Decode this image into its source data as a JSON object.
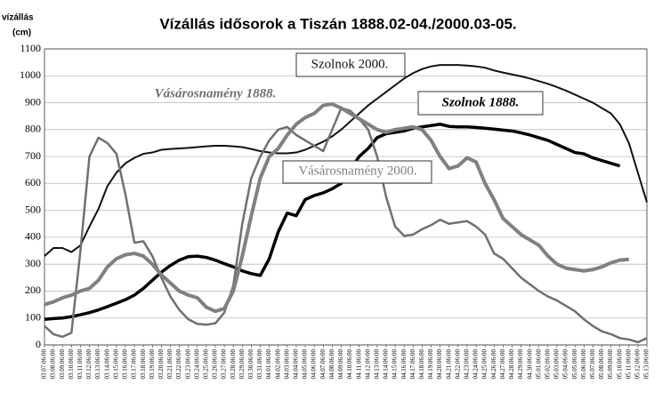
{
  "chart_data": {
    "type": "line",
    "title": "Vízállás idősorok a Tiszán  1888.02-04./2000.03-05.",
    "ylabel": "vízállás",
    "yunit": "(cm)",
    "ylim": [
      0,
      1100
    ],
    "yticks": [
      0,
      100,
      200,
      300,
      400,
      500,
      600,
      700,
      800,
      900,
      1000,
      1100
    ],
    "grid": true,
    "categories": [
      "03.07.06:00",
      "03.08.06:00",
      "03.09.06:00",
      "03.10.06:00",
      "03.11.06:00",
      "03.12.06:00",
      "03.13.06:00",
      "03.14.06:00",
      "03.15.06:00",
      "03.16.06:00",
      "03.17.06:00",
      "03.18.06:00",
      "03.19.06:00",
      "03.20.06:00",
      "03.21.06:00",
      "03.22.06:00",
      "03.23.06:00",
      "03.24.06:00",
      "03.25.06:00",
      "03.26.06:00",
      "03.27.06:00",
      "03.28.06:00",
      "03.29.06:00",
      "03.30.06:00",
      "03.31.06:00",
      "04.01.06:00",
      "04.02.06:00",
      "04.03.06:00",
      "04.04.06:00",
      "04.05.06:00",
      "04.06.06:00",
      "04.07.06:00",
      "04.08.06:00",
      "04.09.06:00",
      "04.10.06:00",
      "04.11.06:00",
      "04.12.06:00",
      "04.13.06:00",
      "04.14.06:00",
      "04.15.06:00",
      "04.16.06:00",
      "04.17.06:00",
      "04.18.06:00",
      "04.19.06:00",
      "04.20.06:00",
      "04.21.06:00",
      "04.22.06:00",
      "04.23.06:00",
      "04.24.06:00",
      "04.25.06:00",
      "04.26.06:00",
      "04.27.06:00",
      "04.28.06:00",
      "04.29.06:00",
      "04.30.06:00",
      "05.01.06:00",
      "05.02.06:00",
      "05.03.06:00",
      "05.04.06:00",
      "05.05.06:00",
      "05.06.06:00",
      "05.07.06:00",
      "05.08.06:00",
      "05.09.06:00",
      "05.10.06:00",
      "05.11.06:00",
      "05.12.06:00",
      "05.13.06:00"
    ],
    "series": [
      {
        "name": "Szolnok 2000.",
        "color": "#111111",
        "values": [
          330,
          360,
          360,
          345,
          370,
          440,
          505,
          590,
          640,
          675,
          695,
          710,
          715,
          725,
          728,
          730,
          732,
          735,
          738,
          740,
          740,
          738,
          735,
          728,
          720,
          715,
          712,
          712,
          715,
          725,
          740,
          755,
          775,
          800,
          830,
          860,
          890,
          915,
          940,
          965,
          990,
          1010,
          1025,
          1035,
          1040,
          1040,
          1040,
          1038,
          1035,
          1030,
          1020,
          1012,
          1005,
          998,
          990,
          980,
          970,
          958,
          945,
          930,
          915,
          900,
          880,
          860,
          820,
          750,
          640,
          530
        ]
      },
      {
        "name": "Szolnok 1888.",
        "color": "#000000",
        "values": [
          95,
          98,
          100,
          105,
          112,
          120,
          130,
          142,
          155,
          168,
          185,
          210,
          240,
          270,
          295,
          315,
          328,
          330,
          325,
          315,
          302,
          290,
          275,
          265,
          258,
          320,
          420,
          490,
          480,
          540,
          555,
          565,
          580,
          600,
          650,
          700,
          730,
          770,
          785,
          790,
          795,
          805,
          810,
          815,
          820,
          812,
          810,
          810,
          808,
          805,
          802,
          798,
          795,
          788,
          780,
          770,
          760,
          745,
          730,
          715,
          710,
          695,
          685,
          675,
          665,
          null,
          null,
          null
        ]
      },
      {
        "name": "Vásárosnamény 1888.",
        "color": "#707070",
        "values": [
          70,
          40,
          30,
          45,
          350,
          700,
          770,
          750,
          710,
          560,
          380,
          385,
          330,
          250,
          180,
          130,
          95,
          78,
          75,
          80,
          120,
          220,
          450,
          620,
          700,
          760,
          800,
          810,
          780,
          760,
          740,
          720,
          800,
          880,
          870,
          840,
          800,
          700,
          550,
          440,
          405,
          410,
          430,
          445,
          465,
          450,
          455,
          460,
          440,
          410,
          340,
          320,
          285,
          250,
          225,
          200,
          180,
          165,
          145,
          125,
          95,
          70,
          50,
          40,
          25,
          20,
          10,
          25
        ]
      },
      {
        "name": "Vásárosnamény 2000.",
        "color": "#808080",
        "values": [
          150,
          160,
          175,
          185,
          200,
          210,
          240,
          290,
          320,
          335,
          340,
          330,
          300,
          260,
          230,
          200,
          185,
          175,
          140,
          125,
          135,
          200,
          330,
          480,
          620,
          700,
          730,
          780,
          820,
          845,
          860,
          890,
          895,
          880,
          860,
          840,
          820,
          800,
          790,
          800,
          805,
          810,
          800,
          760,
          700,
          655,
          665,
          695,
          680,
          600,
          540,
          470,
          440,
          410,
          390,
          370,
          330,
          300,
          285,
          280,
          275,
          280,
          290,
          305,
          315,
          318,
          null,
          null
        ]
      }
    ]
  }
}
